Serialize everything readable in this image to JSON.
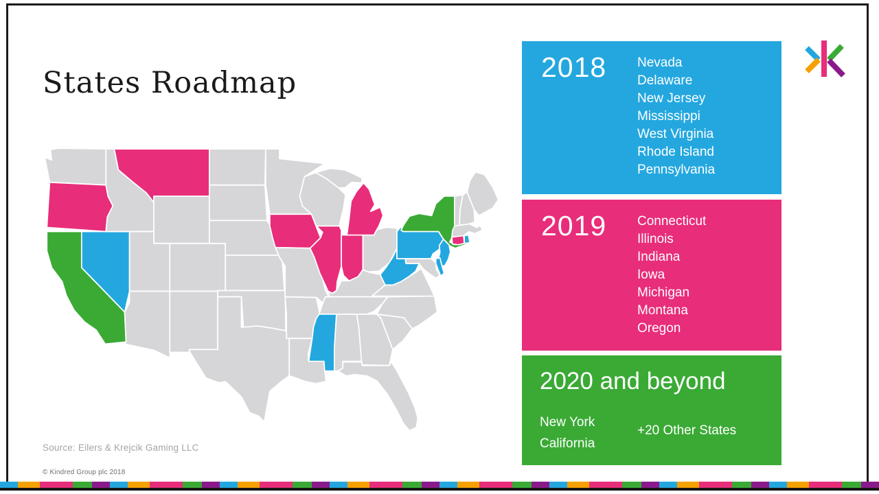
{
  "slide": {
    "title": "States Roadmap",
    "source": "Source: Eilers & Krejcik Gaming LLC",
    "copyright": "© Kindred Group plc 2018"
  },
  "colors": {
    "blue": "#24A7DF",
    "pink": "#E82D7A",
    "green": "#3AAA35",
    "orange": "#F5A100",
    "purple": "#8A1A8B",
    "state_gray": "#D6D6D8",
    "title_text": "#1A1A1A",
    "source_text": "#A5A5A5",
    "border_black": "#1A1A1A"
  },
  "roadmap": [
    {
      "year": "2018",
      "color_key": "blue",
      "states": [
        "Nevada",
        "Delaware",
        "New Jersey",
        "Mississippi",
        "West Virginia",
        "Rhode Island",
        "Pennsylvania"
      ]
    },
    {
      "year": "2019",
      "color_key": "pink",
      "states": [
        "Connecticut",
        "Illinois",
        "Indiana",
        "Iowa",
        "Michigan",
        "Montana",
        "Oregon"
      ]
    },
    {
      "year": "2020 and beyond",
      "color_key": "green",
      "states": [
        "New York",
        "California"
      ],
      "extra": "+20 Other States"
    }
  ],
  "map": {
    "highlights": {
      "blue": [
        "NV",
        "MS",
        "WV",
        "PA",
        "NJ",
        "DE",
        "RI"
      ],
      "pink": [
        "OR",
        "MT",
        "IA",
        "IL",
        "IN",
        "MI",
        "CT"
      ],
      "green": [
        "CA",
        "NY"
      ]
    }
  },
  "logo": {
    "label": "kindred-group-logo"
  }
}
